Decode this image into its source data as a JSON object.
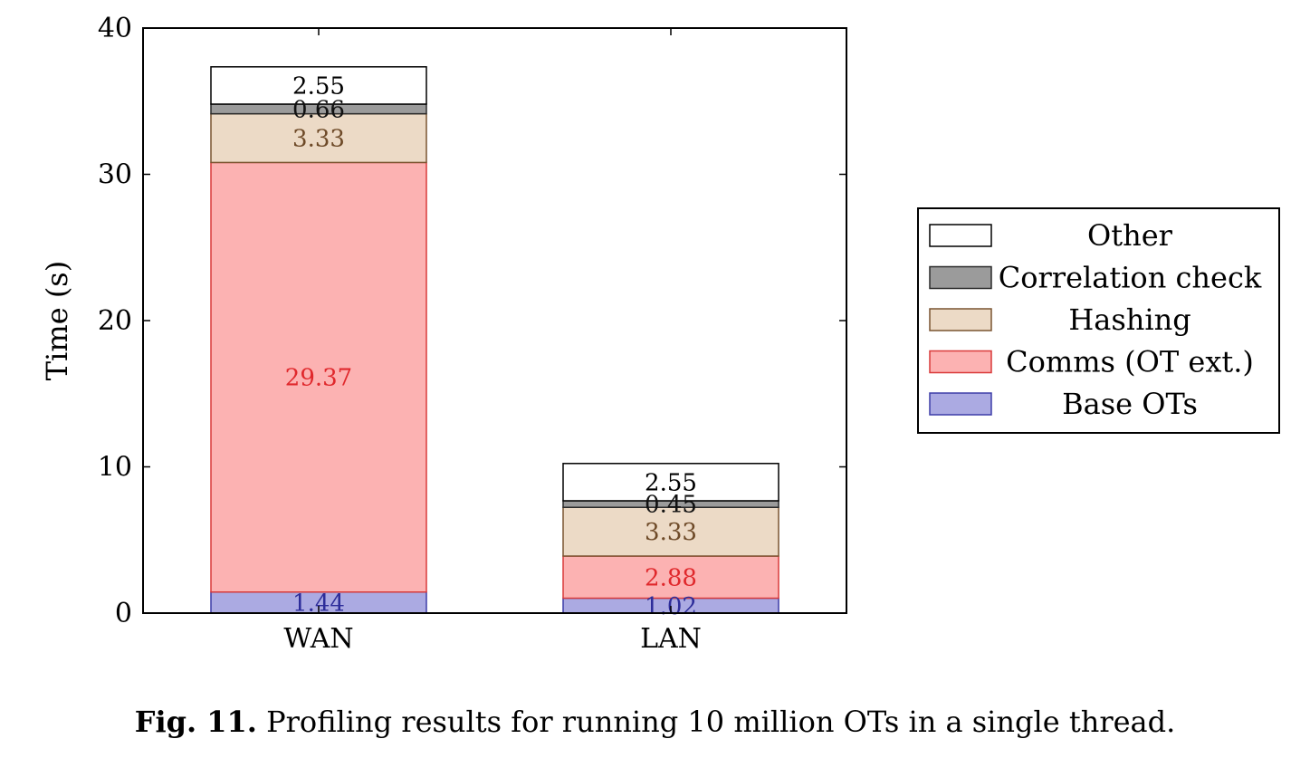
{
  "chart_data": {
    "type": "bar",
    "stacked": true,
    "categories": [
      "WAN",
      "LAN"
    ],
    "ylabel": "Time (s)",
    "ylim": [
      0,
      40
    ],
    "yticks": [
      0,
      10,
      20,
      30,
      40
    ],
    "series": [
      {
        "name": "Base OTs",
        "values": [
          1.44,
          1.02
        ],
        "labels": [
          "1.44",
          "1.02"
        ],
        "fill": "#abaae2",
        "stroke": "#3d3da8",
        "text": "#2d2d9a"
      },
      {
        "name": "Comms (OT ext.)",
        "values": [
          29.37,
          2.88
        ],
        "labels": [
          "29.37",
          "2.88"
        ],
        "fill": "#fcb2b2",
        "stroke": "#d93a3a",
        "text": "#e0282c"
      },
      {
        "name": "Hashing",
        "values": [
          3.33,
          3.33
        ],
        "labels": [
          "3.33",
          "3.33"
        ],
        "fill": "#ecdac6",
        "stroke": "#7a5430",
        "text": "#6e4a28"
      },
      {
        "name": "Correlation check",
        "values": [
          0.66,
          0.45
        ],
        "labels": [
          "0.66",
          "0.45"
        ],
        "fill": "#9b9b9b",
        "stroke": "#2a2a2a",
        "text": "#111111"
      },
      {
        "name": "Other",
        "values": [
          2.55,
          2.55
        ],
        "labels": [
          "2.55",
          "2.55"
        ],
        "fill": "#ffffff",
        "stroke": "#000000",
        "text": "#000000"
      }
    ],
    "legend_position": "right",
    "legend_order": [
      "Other",
      "Correlation check",
      "Hashing",
      "Comms (OT ext.)",
      "Base OTs"
    ],
    "grid": false
  },
  "caption": {
    "prefix": "Fig. 11.",
    "text": " Profiling results for running 10 million OTs in a single thread."
  }
}
